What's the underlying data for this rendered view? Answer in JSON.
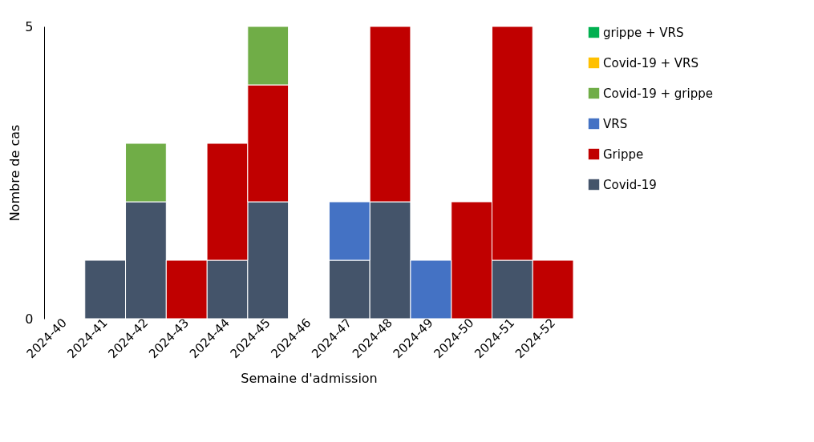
{
  "chart_data": {
    "type": "bar",
    "stacked": true,
    "xlabel": "Semaine d'admission",
    "ylabel": "Nombre de cas",
    "categories": [
      "2024-40",
      "2024-41",
      "2024-42",
      "2024-43",
      "2024-44",
      "2024-45",
      "2024-46",
      "2024-47",
      "2024-48",
      "2024-49",
      "2024-50",
      "2024-51",
      "2024-52"
    ],
    "series": [
      {
        "name": "Covid-19",
        "color": "#44546a",
        "values": [
          0,
          1,
          2,
          0,
          1,
          2,
          0,
          1,
          2,
          0,
          0,
          1,
          0
        ]
      },
      {
        "name": "Grippe",
        "color": "#c00000",
        "values": [
          0,
          0,
          0,
          1,
          2,
          2,
          0,
          0,
          3,
          0,
          2,
          4,
          1
        ]
      },
      {
        "name": "VRS",
        "color": "#4472c4",
        "values": [
          0,
          0,
          0,
          0,
          0,
          0,
          0,
          1,
          0,
          1,
          0,
          0,
          0
        ]
      },
      {
        "name": "Covid-19 + grippe",
        "color": "#70ad47",
        "values": [
          0,
          0,
          1,
          0,
          0,
          1,
          0,
          0,
          0,
          0,
          0,
          0,
          0
        ]
      },
      {
        "name": "Covid-19 + VRS",
        "color": "#ffc000",
        "values": [
          0,
          0,
          0,
          0,
          0,
          0,
          0,
          0,
          0,
          0,
          0,
          0,
          0
        ]
      },
      {
        "name": "grippe + VRS",
        "color": "#00b050",
        "values": [
          0,
          0,
          0,
          0,
          0,
          0,
          0,
          0,
          0,
          0,
          0,
          0,
          0
        ]
      }
    ],
    "ylim": [
      0,
      5
    ],
    "yticks": [
      0,
      5
    ],
    "grid": false,
    "legend": "right"
  }
}
